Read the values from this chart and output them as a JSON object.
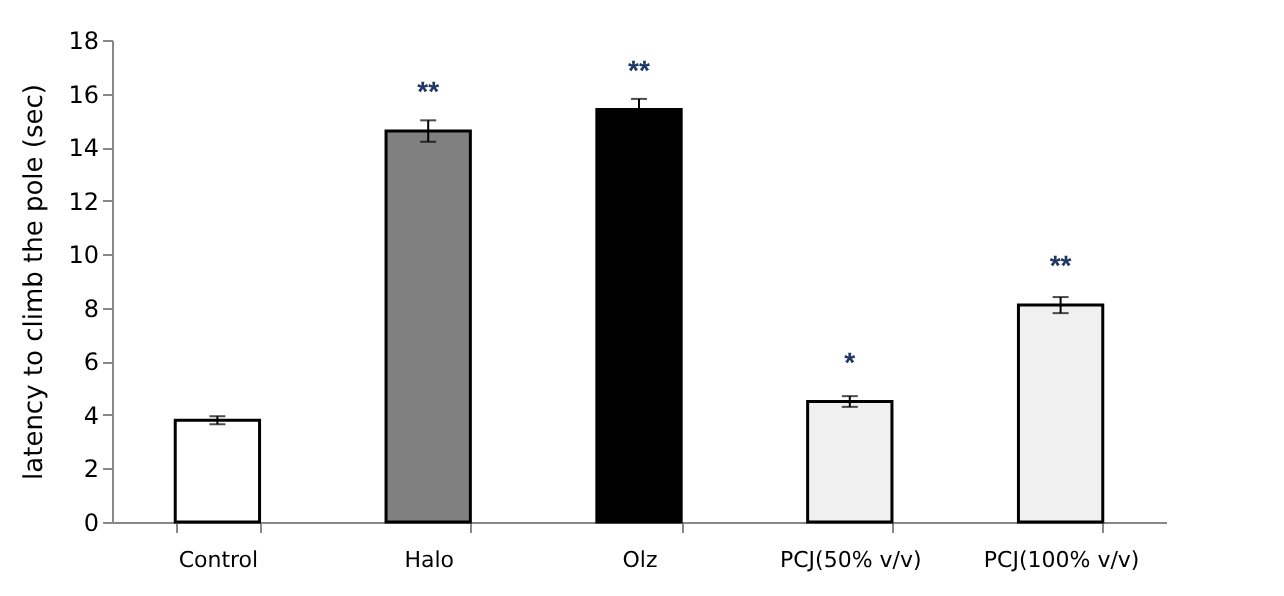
{
  "chart_data": {
    "type": "bar",
    "ylabel": "latency to climb the pole (sec)",
    "categories": [
      "Control",
      "Halo",
      "Olz",
      "PCJ(50% v/v)",
      "PCJ(100% v/v)"
    ],
    "values": [
      3.8,
      14.6,
      15.4,
      4.5,
      8.1
    ],
    "errors": [
      0.15,
      0.4,
      0.4,
      0.2,
      0.3
    ],
    "colors": [
      "#ffffff",
      "#808080",
      "#000000",
      "#f0f0f0",
      "#f0f0f0"
    ],
    "ylim": [
      0,
      18
    ],
    "yticks": [
      0,
      2,
      4,
      6,
      8,
      10,
      12,
      14,
      16,
      18
    ],
    "grid": false,
    "annotations": [
      {
        "text": "**",
        "x": "Halo",
        "y": 14.6
      },
      {
        "text": "**",
        "x": "Olz",
        "y": 15.4
      },
      {
        "text": "*",
        "x": "PCJ(50% v/v)",
        "y": 4.5
      },
      {
        "text": "**",
        "x": "PCJ(100% v/v)",
        "y": 8.1
      }
    ]
  }
}
